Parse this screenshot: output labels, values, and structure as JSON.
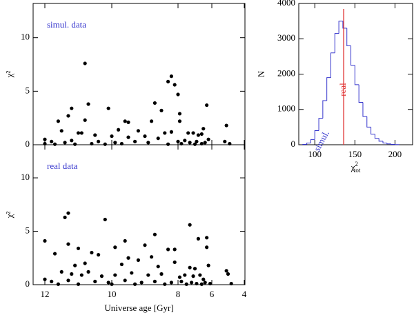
{
  "chart_data": [
    {
      "type": "scatter",
      "annotation": "simul. data",
      "ylabel": "χ²",
      "color": "#000000",
      "annotation_color": "#3333cc",
      "xlim": [
        12.35,
        4
      ],
      "xticks": [
        12,
        10,
        8,
        6,
        4
      ],
      "ylim": [
        0,
        13.2
      ],
      "yticks": [
        0,
        5,
        10
      ],
      "x": [
        10.8,
        8.2,
        8.3,
        8.1,
        8.0,
        6.3,
        10.7,
        8.7,
        10.1,
        11.2,
        11.3,
        10.8,
        9.5,
        9.6,
        8.5,
        7.9,
        8.8,
        11.6,
        7.9,
        5.1,
        6.5,
        11.5,
        11.0,
        10.9,
        9.8,
        9.2,
        8.4,
        7.1,
        7.4,
        6.6,
        6.8,
        10.5,
        10.0,
        9.5,
        9.0,
        8.6,
        8.2,
        12.0,
        11.8,
        11.4,
        11.2,
        10.4,
        9.9,
        9.3,
        8.9,
        8.0,
        7.6,
        7.3,
        6.9,
        6.4,
        6.2,
        5.2,
        4.9,
        11.7,
        11.1,
        10.6,
        10.2,
        9.7,
        8.3,
        7.8,
        7.0,
        6.6,
        12.0
      ],
      "values": [
        7.6,
        6.4,
        5.9,
        5.6,
        4.7,
        3.7,
        3.8,
        3.9,
        3.4,
        3.4,
        2.7,
        2.3,
        2.1,
        2.2,
        3.2,
        2.9,
        2.2,
        2.2,
        2.2,
        1.8,
        1.5,
        1.3,
        1.1,
        1.1,
        1.4,
        1.3,
        1.1,
        1.1,
        1.1,
        1.0,
        0.9,
        0.9,
        0.8,
        0.7,
        0.8,
        0.6,
        1.2,
        0.5,
        0.3,
        0.2,
        0.4,
        0.3,
        0.2,
        0.3,
        0.2,
        0.3,
        0.4,
        0.2,
        0.3,
        0.2,
        0.5,
        0.3,
        0.1,
        0.05,
        0.05,
        0.1,
        0.05,
        0.1,
        0.05,
        0.1,
        0.05,
        0.1,
        0.1
      ]
    },
    {
      "type": "histogram",
      "ylabel": "N",
      "xlabel": {
        "base": "χ",
        "sup": "2",
        "sub": "tot"
      },
      "color": "#3333cc",
      "xlim": [
        80,
        222
      ],
      "xticks": [
        100,
        150,
        200
      ],
      "ylim": [
        0,
        4000
      ],
      "yticks": [
        0,
        1000,
        2000,
        3000,
        4000
      ],
      "bins": [
        85,
        90,
        95,
        100,
        105,
        110,
        115,
        120,
        125,
        130,
        135,
        140,
        145,
        150,
        155,
        160,
        165,
        170,
        175,
        180,
        185,
        190,
        195,
        200,
        205
      ],
      "counts": [
        10,
        50,
        150,
        400,
        750,
        1250,
        1900,
        2600,
        3150,
        3500,
        3300,
        2800,
        2250,
        1700,
        1200,
        800,
        500,
        300,
        180,
        100,
        50,
        25,
        10,
        5
      ],
      "vline": {
        "x": 136,
        "label": "real",
        "color": "#e03030"
      },
      "annotation": "simul."
    },
    {
      "type": "scatter",
      "annotation": "real data",
      "ylabel": "χ²",
      "xlabel": "Universe age [Gyr]",
      "color": "#000000",
      "annotation_color": "#3333cc",
      "xlim": [
        12.35,
        4
      ],
      "xticks": [
        12,
        10,
        8,
        6,
        4
      ],
      "ylim": [
        0,
        13.1
      ],
      "yticks": [
        0,
        5,
        10
      ],
      "x": [
        11.3,
        11.4,
        10.2,
        7.3,
        12,
        9.6,
        11.3,
        10.6,
        10.4,
        9.9,
        9.0,
        8.7,
        8.3,
        8.1,
        6.8,
        6.3,
        6.3,
        11.7,
        11.0,
        9.5,
        8.8,
        8.6,
        7.3,
        6.2,
        10.8,
        11.1,
        9.7,
        9.2,
        8.1,
        7.0,
        5.1,
        5.0,
        12,
        11.5,
        11.2,
        10.9,
        10.7,
        10.3,
        9.9,
        9.4,
        8.9,
        8.5,
        7.9,
        7.6,
        7.1,
        6.7,
        6.5,
        11.8,
        11.3,
        10.5,
        10.1,
        9.6,
        9.1,
        8.7,
        8.2,
        7.8,
        7.2,
        6.9,
        6.4,
        6.1,
        4.8,
        11.6,
        11.0,
        10.0,
        9.3,
        8.4,
        7.5,
        6.6
      ],
      "values": [
        6.7,
        6.3,
        6.1,
        5.6,
        4.1,
        4.1,
        3.8,
        3.0,
        2.8,
        3.5,
        3.7,
        4.7,
        3.3,
        3.3,
        4.3,
        4.4,
        3.5,
        2.9,
        3.4,
        2.5,
        2.6,
        1.7,
        1.6,
        1.8,
        2.0,
        1.8,
        1.9,
        2.3,
        2.1,
        1.5,
        1.3,
        1.0,
        0.5,
        1.2,
        1.0,
        0.9,
        1.2,
        0.8,
        0.9,
        1.1,
        0.9,
        1.0,
        0.7,
        0.9,
        0.8,
        0.9,
        0.5,
        0.3,
        0.4,
        0.3,
        0.2,
        0.4,
        0.2,
        0.3,
        0.2,
        0.3,
        0.2,
        0.1,
        0.2,
        0.1,
        0.1,
        0.05,
        0.05,
        0.05,
        0.05,
        0.05,
        0.05,
        0.05
      ]
    }
  ]
}
